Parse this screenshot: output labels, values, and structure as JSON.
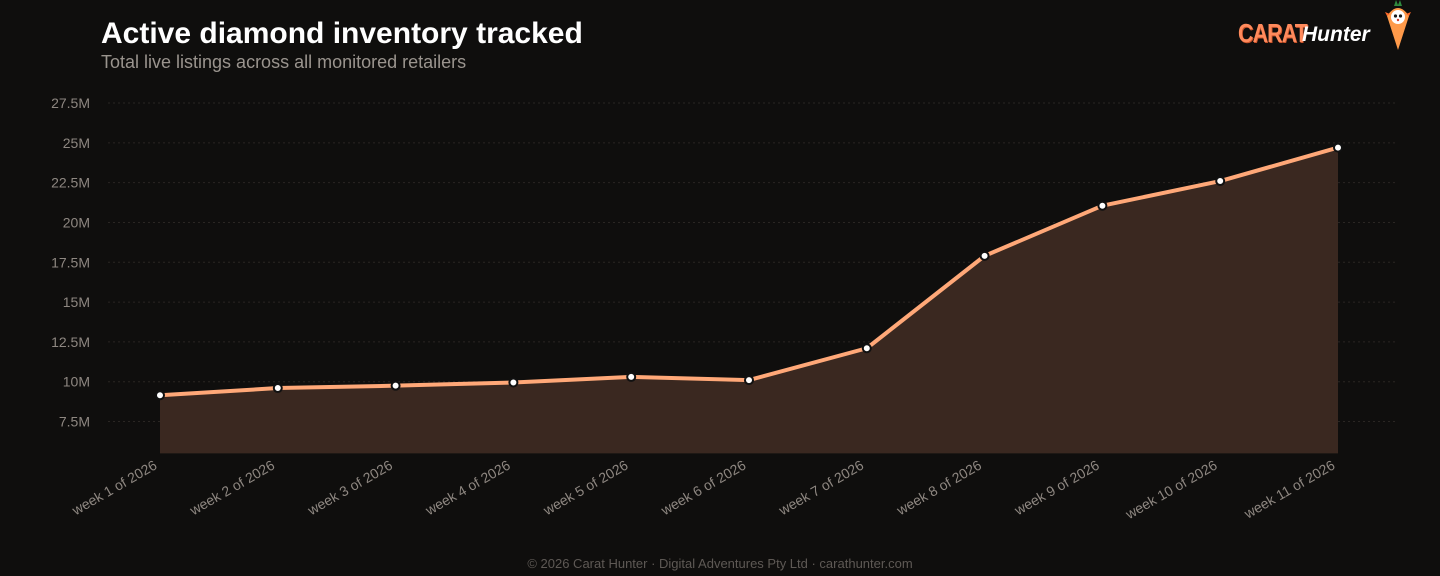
{
  "header": {
    "title": "Active diamond inventory tracked",
    "subtitle": "Total live listings across all monitored retailers"
  },
  "logo": {
    "carat_text": "CARAT",
    "hunter_text": "Hunter",
    "mascot_icon": "carrot-fox-mascot-icon"
  },
  "footer": {
    "text": "© 2026 Carat Hunter · Digital Adventures Pty Ltd · carathunter.com"
  },
  "colors": {
    "background": "#0f0e0d",
    "line": "#ffa878",
    "area_fill": "#3a2820",
    "grid": "#2a2623",
    "tick_label": "#8e8781",
    "brand": "#ff8a5c"
  },
  "chart_data": {
    "type": "area",
    "title": "Active diamond inventory tracked",
    "subtitle": "Total live listings across all monitored retailers",
    "xlabel": "",
    "ylabel": "",
    "categories": [
      "week 1 of 2026",
      "week 2 of 2026",
      "week 3 of 2026",
      "week 4 of 2026",
      "week 5 of 2026",
      "week 6 of 2026",
      "week 7 of 2026",
      "week 8 of 2026",
      "week 9 of 2026",
      "week 10 of 2026",
      "week 11 of 2026"
    ],
    "series": [
      {
        "values": [
          9.15,
          9.6,
          9.75,
          9.95,
          10.3,
          10.1,
          12.1,
          17.9,
          21.05,
          22.6,
          24.7
        ]
      }
    ],
    "value_unit": "M",
    "ylim": [
      5.5,
      28
    ],
    "yticks": [
      7.5,
      10,
      12.5,
      15,
      17.5,
      20,
      22.5,
      25,
      27.5
    ],
    "ytick_labels": [
      "7.5M",
      "10M",
      "12.5M",
      "15M",
      "17.5M",
      "20M",
      "22.5M",
      "25M",
      "27.5M"
    ],
    "grid": true,
    "legend": "none"
  }
}
